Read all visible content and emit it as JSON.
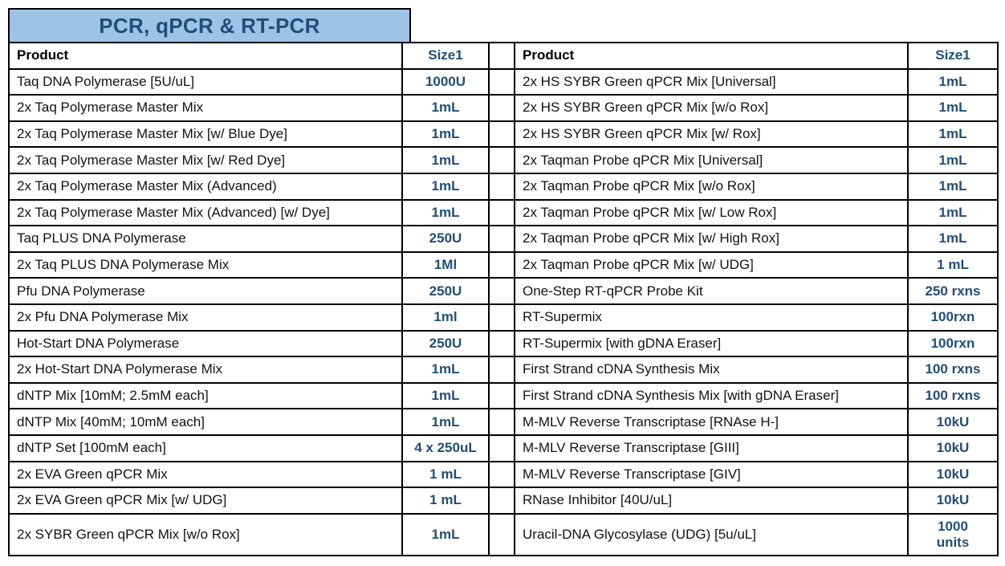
{
  "title": "PCR, qPCR & RT-PCR",
  "headers": {
    "product": "Product",
    "size": "Size1"
  },
  "colors": {
    "title_bg": "#9DC3E6",
    "accent_blue": "#1F4E79",
    "border": "#000000"
  },
  "left_table": {
    "rows": [
      {
        "product": "Taq DNA Polymerase [5U/uL]",
        "size": "1000U"
      },
      {
        "product": "2x Taq Polymerase Master Mix",
        "size": "1mL"
      },
      {
        "product": "2x Taq Polymerase Master Mix [w/ Blue Dye]",
        "size": "1mL"
      },
      {
        "product": "2x Taq Polymerase Master Mix [w/ Red Dye]",
        "size": "1mL"
      },
      {
        "product": "2x Taq Polymerase Master Mix (Advanced)",
        "size": "1mL"
      },
      {
        "product": "2x Taq Polymerase Master Mix (Advanced) [w/ Dye]",
        "size": "1mL"
      },
      {
        "product": "Taq PLUS DNA Polymerase",
        "size": "250U"
      },
      {
        "product": "2x Taq PLUS DNA Polymerase Mix",
        "size": "1Ml"
      },
      {
        "product": "Pfu DNA Polymerase",
        "size": "250U"
      },
      {
        "product": "2x Pfu DNA Polymerase Mix",
        "size": "1ml"
      },
      {
        "product": "Hot-Start DNA Polymerase",
        "size": "250U"
      },
      {
        "product": "2x Hot-Start DNA Polymerase Mix",
        "size": "1mL"
      },
      {
        "product": "dNTP Mix [10mM; 2.5mM each]",
        "size": "1mL"
      },
      {
        "product": "dNTP Mix [40mM; 10mM each]",
        "size": "1mL"
      },
      {
        "product": "dNTP Set [100mM each]",
        "size": "4 x 250uL"
      },
      {
        "product": "2x EVA Green qPCR Mix",
        "size": "1 mL"
      },
      {
        "product": "2x EVA Green qPCR Mix [w/ UDG]",
        "size": "1 mL"
      },
      {
        "product": "2x SYBR Green qPCR Mix [w/o Rox]",
        "size": "1mL"
      }
    ]
  },
  "right_table": {
    "rows": [
      {
        "product": "2x HS SYBR Green qPCR Mix [Universal]",
        "size": "1mL"
      },
      {
        "product": "2x HS SYBR Green qPCR Mix [w/o Rox]",
        "size": "1mL"
      },
      {
        "product": "2x HS SYBR Green qPCR Mix [w/ Rox]",
        "size": "1mL"
      },
      {
        "product": "2x Taqman Probe qPCR Mix [Universal]",
        "size": "1mL"
      },
      {
        "product": "2x Taqman Probe qPCR Mix [w/o Rox]",
        "size": "1mL"
      },
      {
        "product": "2x Taqman Probe qPCR Mix [w/ Low Rox]",
        "size": "1mL"
      },
      {
        "product": "2x Taqman Probe qPCR Mix [w/ High Rox]",
        "size": "1mL"
      },
      {
        "product": "2x Taqman Probe qPCR Mix [w/ UDG]",
        "size": "1 mL"
      },
      {
        "product": "One-Step RT-qPCR Probe Kit",
        "size": "250 rxns"
      },
      {
        "product": "RT-Supermix",
        "size": "100rxn"
      },
      {
        "product": "RT-Supermix [with gDNA Eraser]",
        "size": "100rxn"
      },
      {
        "product": "First Strand cDNA Synthesis Mix",
        "size": "100 rxns"
      },
      {
        "product": "First Strand cDNA Synthesis Mix [with gDNA Eraser]",
        "size": "100 rxns"
      },
      {
        "product": "M-MLV Reverse Transcriptase [RNAse H-]",
        "size": "10kU"
      },
      {
        "product": "M-MLV Reverse Transcriptase [GIII]",
        "size": "10kU"
      },
      {
        "product": "M-MLV Reverse Transcriptase [GIV]",
        "size": "10kU"
      },
      {
        "product": "RNase Inhibitor [40U/uL]",
        "size": "10kU"
      },
      {
        "product": "Uracil-DNA Glycosylase (UDG) [5u/uL]",
        "size": "1000\nunits"
      }
    ]
  }
}
